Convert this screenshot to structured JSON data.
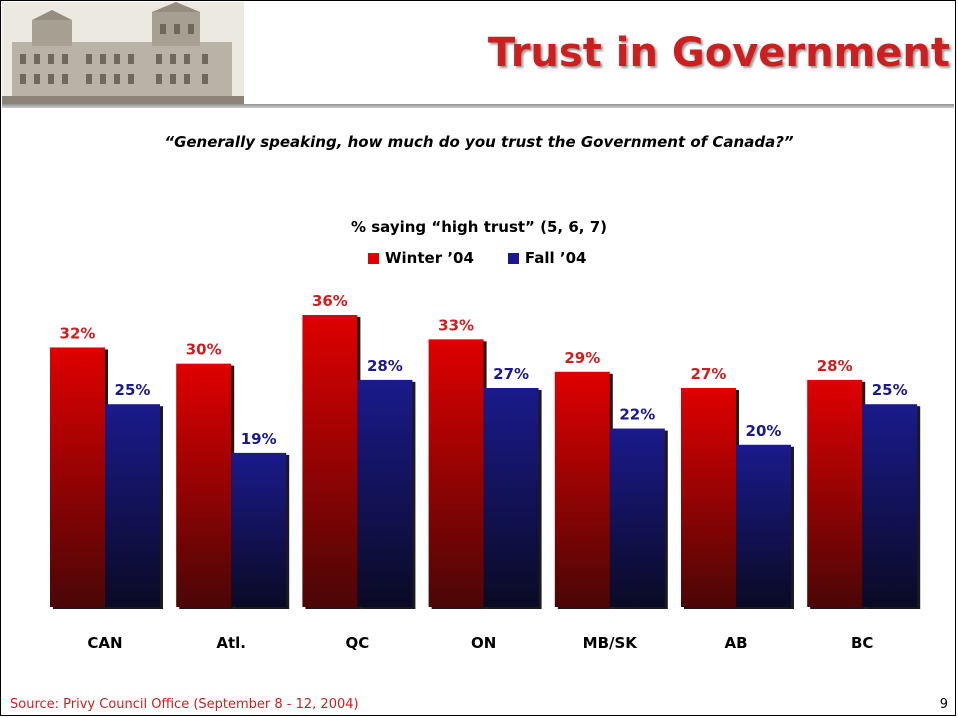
{
  "header": {
    "title": "Trust in Government"
  },
  "question": "“Generally speaking, how much do you trust the Government of Canada?”",
  "footer": {
    "source": "Source: Privy Council Office (September 8 - 12, 2004)",
    "page_number": "9"
  },
  "colors": {
    "title_red": "#cc1f1f",
    "winter_top": "#e00000",
    "winter_bottom": "#4a0606",
    "fall_top": "#1a1a8c",
    "fall_bottom": "#0a0a24",
    "label_winter": "#cc1f1f",
    "label_fall": "#1a1a8c"
  },
  "chart_data": {
    "type": "bar",
    "title": "% saying “high trust” (5, 6, 7)",
    "categories": [
      "CAN",
      "Atl.",
      "QC",
      "ON",
      "MB/SK",
      "AB",
      "BC"
    ],
    "series": [
      {
        "name": "Winter ’04",
        "values": [
          32,
          30,
          36,
          33,
          29,
          27,
          28
        ],
        "labels": [
          "32%",
          "30%",
          "36%",
          "33%",
          "29%",
          "27%",
          "28%"
        ]
      },
      {
        "name": "Fall ’04",
        "values": [
          25,
          19,
          28,
          27,
          22,
          20,
          25
        ],
        "labels": [
          "25%",
          "19%",
          "28%",
          "27%",
          "22%",
          "20%",
          "25%"
        ]
      }
    ],
    "ylim": [
      0,
      36
    ],
    "legend_position": "top-center",
    "grid": false
  }
}
